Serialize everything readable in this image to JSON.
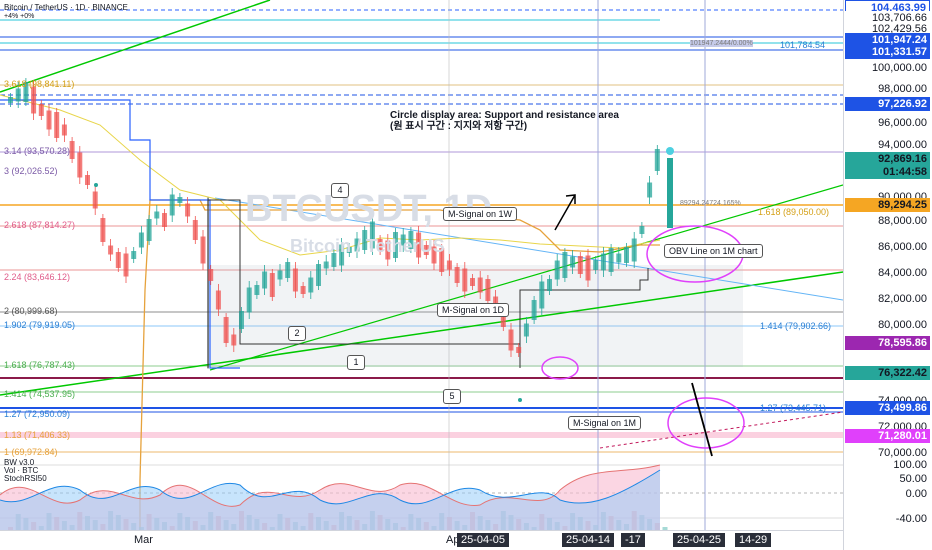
{
  "header": {
    "symbol_title": "Bitcoin / TetherUS · 1D · BINANCE",
    "indicator_line": "+4% +0%"
  },
  "watermark": {
    "ticker": "BTCUSDT, 1D",
    "name": "Bitcoin / TetherUS"
  },
  "annotation": {
    "line1": "Circle display area: Support and resistance area",
    "line2": "(원 표시 구간 : 지지와 저항 구간)"
  },
  "callouts": {
    "msignal_1w": "M-Signal on 1W",
    "msignal_1d": "M-Signal on 1D",
    "msignal_1m": "M-Signal on 1M",
    "obv_1m": "OBV Line on 1M chart"
  },
  "numbers": [
    "1",
    "2",
    "4",
    "5"
  ],
  "fib_labels": [
    {
      "text": "3.618 (98,841.11)",
      "color": "#d4a017"
    },
    {
      "text": "3.14 (93,570.28)",
      "color": "#7b5aa6"
    },
    {
      "text": "3 (92,026.52)",
      "color": "#7b5aa6"
    },
    {
      "text": "2.618 (87,814.27)",
      "color": "#e05c8a"
    },
    {
      "text": "2.24 (83,646.12)",
      "color": "#e05c8a"
    },
    {
      "text": "2 (80,999.68)",
      "color": "#555555"
    },
    {
      "text": "1.902 (79,919.05)",
      "color": "#2a7fd4"
    },
    {
      "text": "1.618 (76,787.43)",
      "color": "#4caf50"
    },
    {
      "text": "1.414 (74,537.95)",
      "color": "#4caf50"
    },
    {
      "text": "1.27 (72,950.09)",
      "color": "#2a7fd4"
    },
    {
      "text": "1.13 (71,406.33)",
      "color": "#e6a23c"
    },
    {
      "text": "1 (69,972.84)",
      "color": "#e6a23c"
    }
  ],
  "right_fib_labels": [
    {
      "text": "1.618 (89,050.00)",
      "color": "#d4a017"
    },
    {
      "text": "1.414 (79,902.66)",
      "color": "#2a7fd4"
    },
    {
      "text": "1.27 (73,445.71)",
      "color": "#2a7fd4"
    },
    {
      "text": "89294.24724.165%",
      "color": "#7a7a7a"
    },
    {
      "text": "101,784.54",
      "color": "#2a7fd4"
    },
    {
      "text": "101947.2444/0.00%",
      "color": "#7a7a7a"
    }
  ],
  "price_axis": {
    "ticks": [
      "100,000.00",
      "98,000.00",
      "96,000.00",
      "94,000.00",
      "90,000.00",
      "88,000.00",
      "86,000.00",
      "84,000.00",
      "82,000.00",
      "80,000.00",
      "74,000.00",
      "72,000.00",
      "70,000.00"
    ],
    "tags": [
      {
        "text": "104,463.99",
        "bg": "#ffffff",
        "fg": "#1e53e5"
      },
      {
        "text": "103,706.66",
        "bg": "#ffffff",
        "fg": "#131722"
      },
      {
        "text": "102,429.56",
        "bg": "#ffffff",
        "fg": "#131722"
      },
      {
        "text": "101,947.24",
        "bg": "#1e53e5",
        "fg": "#ffffff"
      },
      {
        "text": "101,331.57",
        "bg": "#1e53e5",
        "fg": "#ffffff"
      },
      {
        "text": "97,226.92",
        "bg": "#1e53e5",
        "fg": "#ffffff"
      },
      {
        "text": "92,869.16",
        "bg": "#26a69a",
        "fg": "#131722"
      },
      {
        "text": "01:44:58",
        "bg": "#26a69a",
        "fg": "#131722"
      },
      {
        "text": "89,294.25",
        "bg": "#f5a623",
        "fg": "#131722"
      },
      {
        "text": "78,595.86",
        "bg": "#9c27b0",
        "fg": "#ffffff"
      },
      {
        "text": "76,322.42",
        "bg": "#26a69a",
        "fg": "#131722"
      },
      {
        "text": "73,499.86",
        "bg": "#1e53e5",
        "fg": "#ffffff"
      },
      {
        "text": "71,280.01",
        "bg": "#e040fb",
        "fg": "#ffffff"
      }
    ]
  },
  "oscillator": {
    "legend": [
      "BW v3.0",
      "Vol · BTC",
      "StochRSI50"
    ],
    "ticks": [
      "100.00",
      "50.00",
      "0.00",
      "-40.00"
    ]
  },
  "time_axis": {
    "labels": [
      "Mar",
      "Ap",
      "25-04-05",
      "25-04-14",
      "-17",
      "25-04-25",
      "14-29"
    ]
  },
  "colors": {
    "up": "#26a69a",
    "down": "#ef5350",
    "accent": "#1e53e5",
    "trend": "#00c800",
    "circle": "#e040fb"
  }
}
